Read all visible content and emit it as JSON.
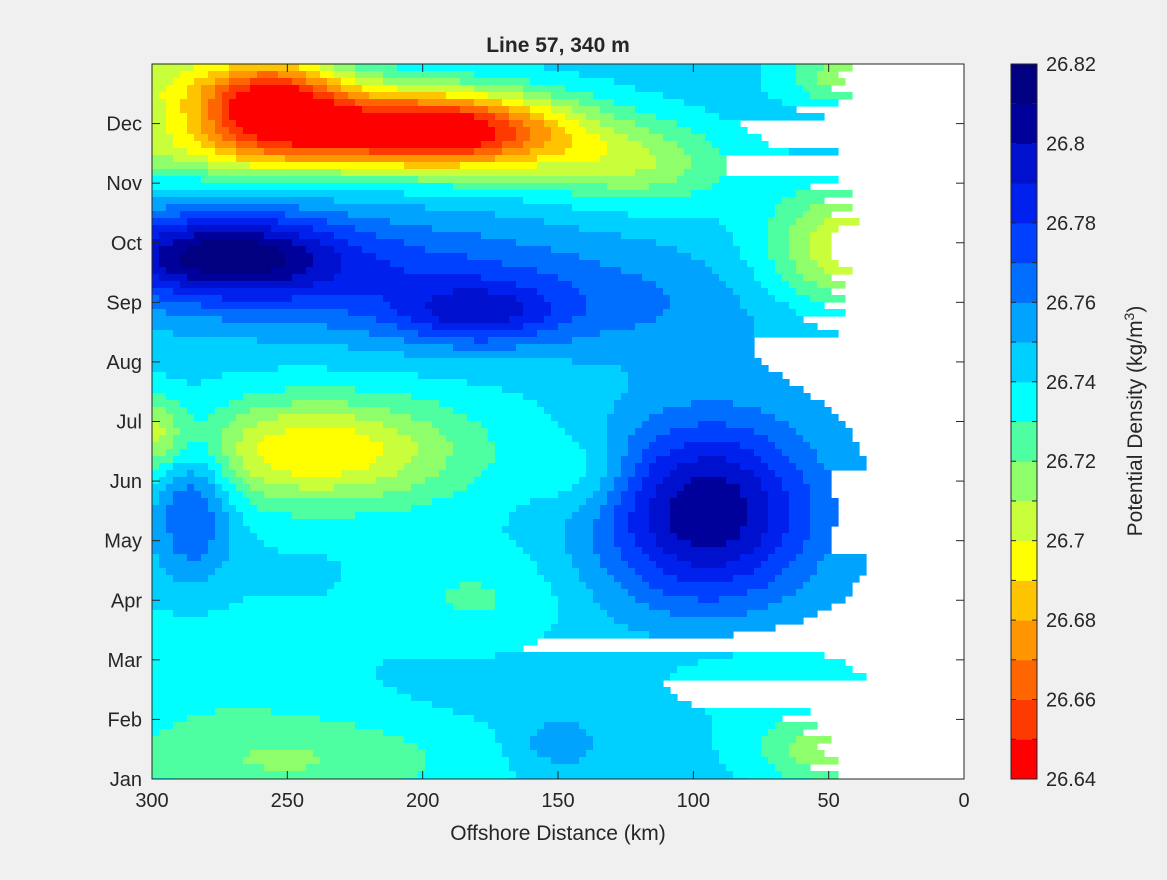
{
  "chart_data": {
    "type": "heatmap",
    "subtype": "filled-contour",
    "title": "Line 57, 340 m",
    "xlabel": "Offshore Distance (km)",
    "ylabel": "",
    "x_axis_reversed": true,
    "xlim": [
      0,
      300
    ],
    "x_ticks": [
      300,
      250,
      200,
      150,
      100,
      50,
      0
    ],
    "y_ticks": [
      "Jan",
      "Feb",
      "Mar",
      "Apr",
      "May",
      "Jun",
      "Jul",
      "Aug",
      "Sep",
      "Oct",
      "Nov",
      "Dec"
    ],
    "y_range_months": [
      0,
      12
    ],
    "no_data_region": {
      "x_from": 0,
      "x_to": 35
    },
    "colorbar": {
      "label_main": "Potential Density (kg/m",
      "label_sup": "3",
      "label_end": ")",
      "levels": [
        26.64,
        26.65,
        26.66,
        26.67,
        26.68,
        26.69,
        26.7,
        26.71,
        26.72,
        26.73,
        26.74,
        26.75,
        26.76,
        26.77,
        26.78,
        26.79,
        26.8,
        26.81,
        26.82
      ],
      "tick_labels": [
        "26.64",
        "26.66",
        "26.68",
        "26.7",
        "26.72",
        "26.74",
        "26.76",
        "26.78",
        "26.8",
        "26.82"
      ],
      "colors": [
        "#ff0000",
        "#ff3a00",
        "#ff6500",
        "#ff9500",
        "#ffc400",
        "#ffff00",
        "#c8ff3a",
        "#8eff6a",
        "#4dffa0",
        "#00ffff",
        "#00d0ff",
        "#00a4ff",
        "#006eff",
        "#0040ff",
        "#0020ee",
        "#0010cf",
        "#00009b",
        "#000080"
      ]
    },
    "background_density": 26.745,
    "features": [
      {
        "x": 255,
        "y": 11.3,
        "sx": 20,
        "sy": 0.55,
        "amp": -0.085
      },
      {
        "x": 205,
        "y": 10.95,
        "sx": 30,
        "sy": 0.45,
        "amp": -0.085
      },
      {
        "x": 170,
        "y": 10.8,
        "sx": 30,
        "sy": 0.5,
        "amp": -0.045
      },
      {
        "x": 300,
        "y": 11.6,
        "sx": 40,
        "sy": 0.8,
        "amp": -0.035
      },
      {
        "x": 120,
        "y": 10.3,
        "sx": 25,
        "sy": 0.5,
        "amp": -0.03
      },
      {
        "x": 260,
        "y": 10.5,
        "sx": 50,
        "sy": 0.35,
        "amp": -0.025
      },
      {
        "x": 275,
        "y": 8.8,
        "sx": 30,
        "sy": 0.5,
        "amp": 0.06
      },
      {
        "x": 220,
        "y": 8.5,
        "sx": 60,
        "sy": 0.7,
        "amp": 0.025
      },
      {
        "x": 180,
        "y": 7.8,
        "sx": 20,
        "sy": 0.35,
        "amp": 0.03
      },
      {
        "x": 150,
        "y": 7.9,
        "sx": 60,
        "sy": 0.6,
        "amp": 0.015
      },
      {
        "x": 95,
        "y": 4.5,
        "sx": 28,
        "sy": 1.1,
        "amp": 0.065
      },
      {
        "x": 285,
        "y": 4.7,
        "sx": 10,
        "sy": 0.9,
        "amp": 0.035
      },
      {
        "x": 150,
        "y": 0.6,
        "sx": 10,
        "sy": 0.3,
        "amp": 0.015
      },
      {
        "x": 240,
        "y": 5.5,
        "sx": 35,
        "sy": 0.6,
        "amp": -0.045
      },
      {
        "x": 140,
        "y": 5.1,
        "sx": 12,
        "sy": 0.45,
        "amp": -0.015
      },
      {
        "x": 300,
        "y": 5.8,
        "sx": 10,
        "sy": 0.45,
        "amp": -0.03
      },
      {
        "x": 35,
        "y": 8.9,
        "sx": 25,
        "sy": 0.75,
        "amp": -0.055
      },
      {
        "x": 35,
        "y": 11.8,
        "sx": 20,
        "sy": 0.35,
        "amp": -0.04
      },
      {
        "x": 40,
        "y": 0.5,
        "sx": 25,
        "sy": 0.45,
        "amp": -0.04
      },
      {
        "x": 250,
        "y": 0.3,
        "sx": 50,
        "sy": 0.6,
        "amp": -0.025
      },
      {
        "x": 280,
        "y": 2.0,
        "sx": 40,
        "sy": 0.8,
        "amp": -0.012
      },
      {
        "x": 180,
        "y": 3.0,
        "sx": 25,
        "sy": 0.6,
        "amp": -0.015
      },
      {
        "x": 80,
        "y": 1.8,
        "sx": 30,
        "sy": 0.5,
        "amp": -0.012
      },
      {
        "x": 220,
        "y": 5.5,
        "sx": 70,
        "sy": 1.2,
        "amp": -0.01
      }
    ]
  }
}
